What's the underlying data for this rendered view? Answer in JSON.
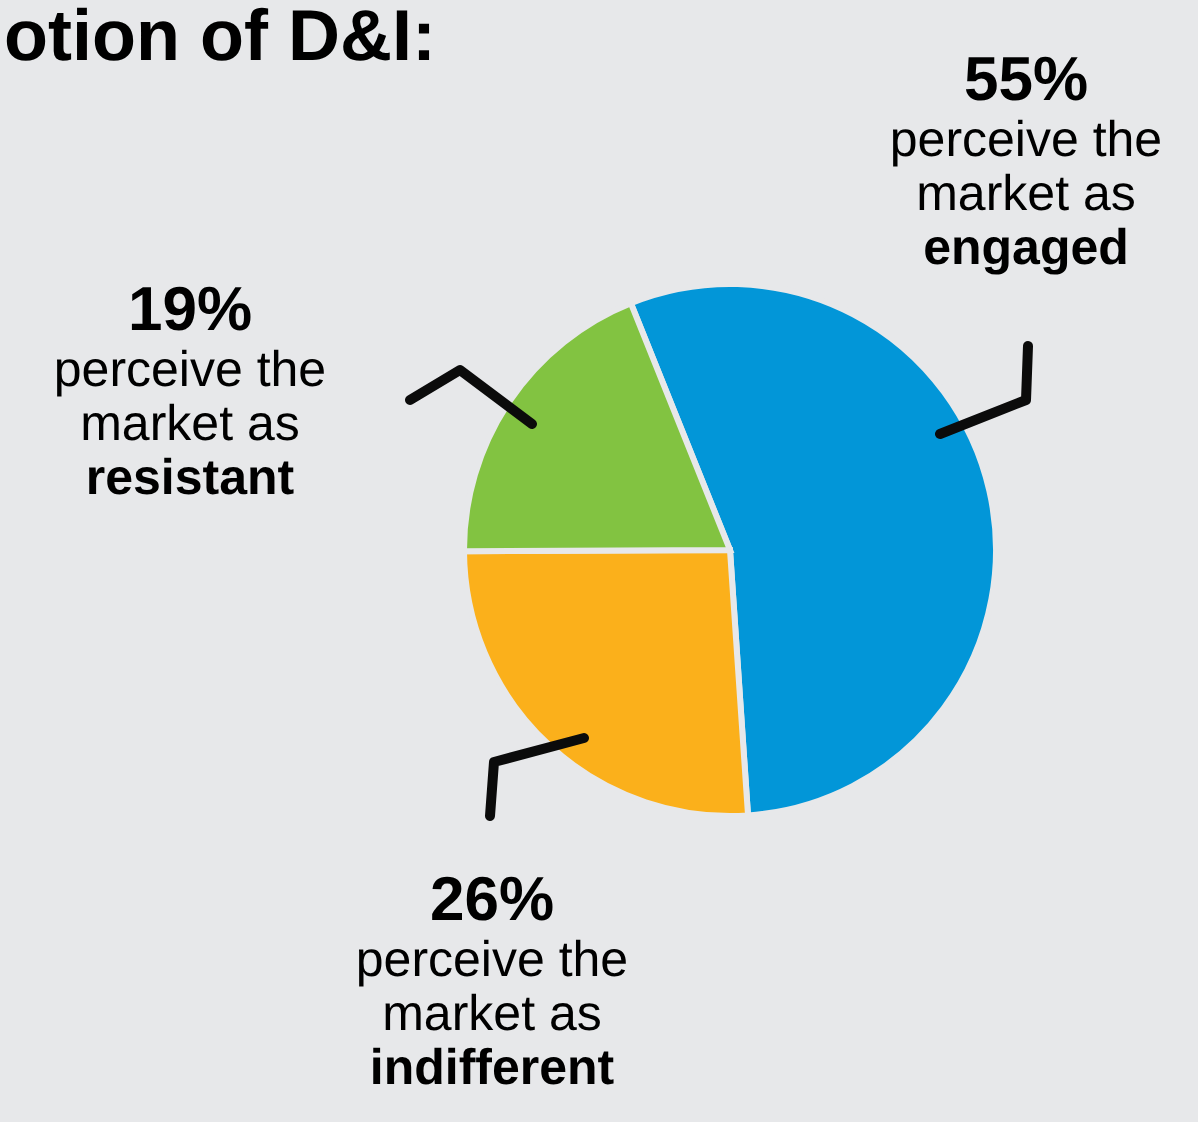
{
  "chart_data": {
    "type": "pie",
    "title": "otion of D&I:",
    "categories": [
      "perceive the market as engaged",
      "perceive the market as indifferent",
      "perceive the market as resistant"
    ],
    "values": [
      55,
      26,
      19
    ],
    "value_labels": [
      "55%",
      "26%",
      "19%"
    ],
    "colors": [
      "#0296d8",
      "#fbb01b",
      "#82c341"
    ],
    "legend": false
  }
}
